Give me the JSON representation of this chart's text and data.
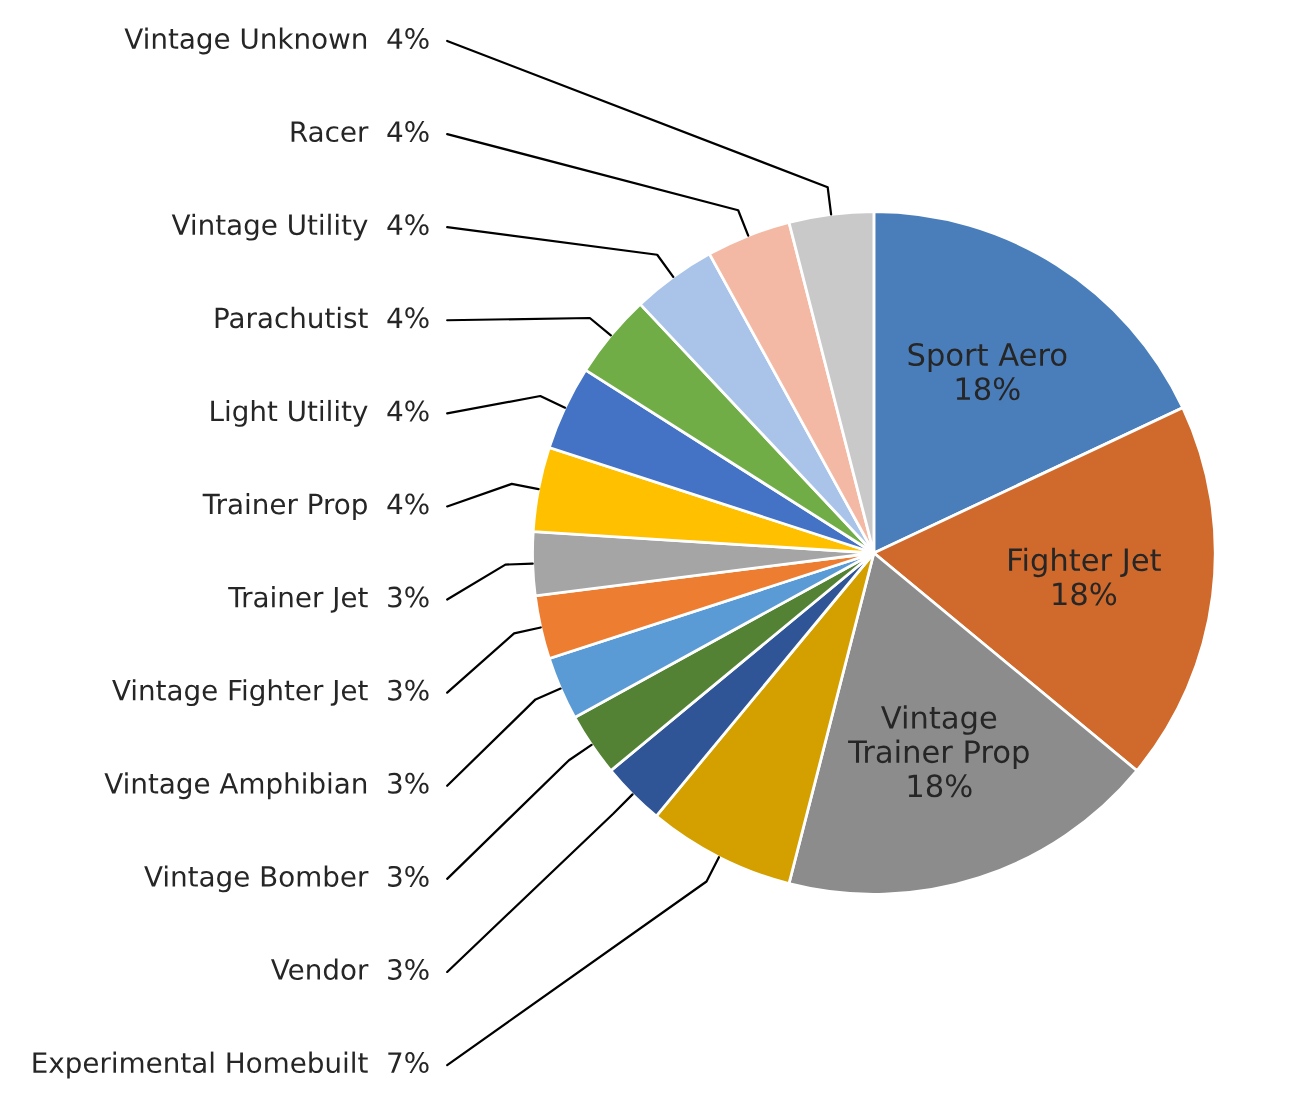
{
  "chart_data": {
    "type": "pie",
    "categories": [
      "Sport Aero",
      "Fighter Jet",
      "Vintage Trainer Prop",
      "Experimental Homebuilt",
      "Vendor",
      "Vintage Bomber",
      "Vintage Amphibian",
      "Vintage Fighter Jet",
      "Trainer Jet",
      "Trainer Prop",
      "Light Utility",
      "Parachutist",
      "Vintage Utility",
      "Racer",
      "Vintage Unknown"
    ],
    "values": [
      18,
      18,
      18,
      7,
      3,
      3,
      3,
      3,
      3,
      4,
      4,
      4,
      4,
      4,
      4
    ],
    "value_labels": [
      "18%",
      "18%",
      "18%",
      "7%",
      "3%",
      "3%",
      "3%",
      "3%",
      "3%",
      "4%",
      "4%",
      "4%",
      "4%",
      "4%",
      "4%"
    ],
    "colors": [
      "#4a7ebb",
      "#d0692c",
      "#8c8c8c",
      "#d4a000",
      "#2f5597",
      "#548235",
      "#5b9bd5",
      "#ed7d31",
      "#a5a5a5",
      "#ffc000",
      "#4472c4",
      "#70ad47",
      "#a9c4e8",
      "#f4b9a4",
      "#c9c9c9"
    ],
    "legend": false
  }
}
